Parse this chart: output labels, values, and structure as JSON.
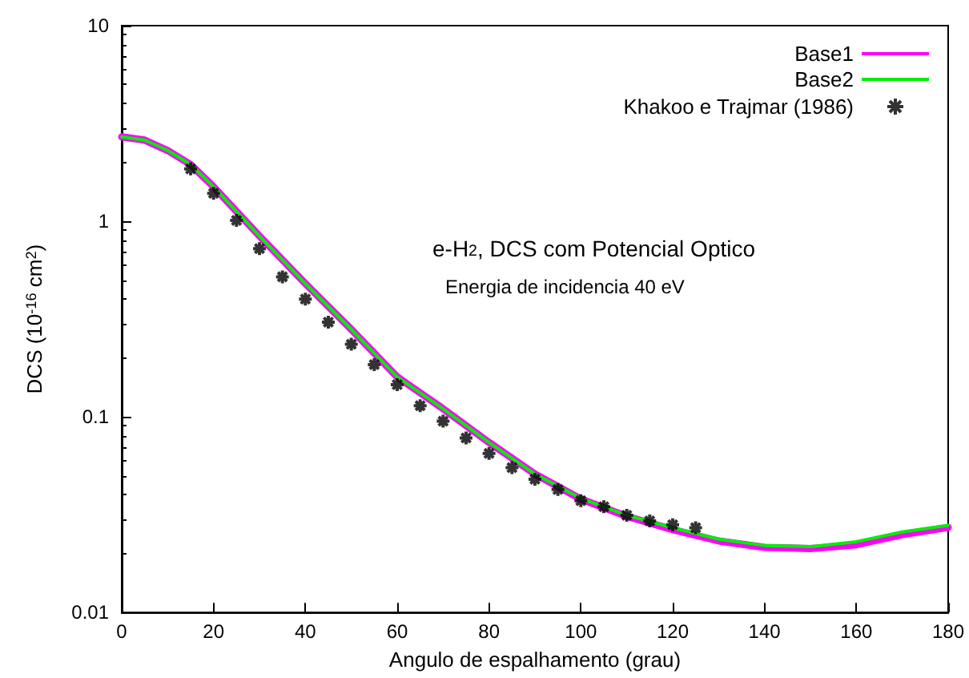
{
  "chart_data": {
    "type": "line",
    "xlabel": "Angulo de espalhamento (grau)",
    "ylabel": "DCS (10$^{-16}$ cm$^{2}$)",
    "annotations": [
      "e-H$_{2}$, DCS com Potencial Optico",
      "Energia de incidencia 40 eV"
    ],
    "log": "y",
    "xlim": [
      0,
      180
    ],
    "xticks": [
      0,
      20,
      40,
      60,
      80,
      100,
      120,
      140,
      160,
      180
    ],
    "ylim": [
      0.01,
      10
    ],
    "yticks": [
      0.01,
      0.1,
      1,
      10
    ],
    "grid": false,
    "legend": "top right",
    "line_style": "solid",
    "marker": "none",
    "series": [
      {
        "name": "Base1",
        "color": "#ff00ff",
        "x": [
          0,
          5,
          10,
          15,
          20,
          30,
          40,
          50,
          60,
          70,
          80,
          90,
          100,
          110,
          120,
          130,
          140,
          150,
          160,
          170,
          180
        ],
        "values": [
          2.7,
          2.6,
          2.3,
          1.95,
          1.5,
          0.84,
          0.48,
          0.28,
          0.16,
          0.11,
          0.074,
          0.051,
          0.038,
          0.031,
          0.0265,
          0.0232,
          0.0215,
          0.0212,
          0.0222,
          0.025,
          0.0272
        ]
      },
      {
        "name": "Base2",
        "color": "#00ee00",
        "x": [
          0,
          5,
          10,
          15,
          20,
          30,
          40,
          50,
          60,
          70,
          80,
          90,
          100,
          110,
          120,
          130,
          140,
          150,
          160,
          170,
          180
        ],
        "values": [
          2.7,
          2.6,
          2.3,
          1.95,
          1.5,
          0.84,
          0.48,
          0.28,
          0.16,
          0.11,
          0.074,
          0.051,
          0.0383,
          0.0314,
          0.0271,
          0.0237,
          0.022,
          0.0217,
          0.023,
          0.0258,
          0.0279
        ]
      },
      {
        "name": "Khakoo e Trajmar (1986)",
        "type": "scatter",
        "marker": "cross",
        "color": "#000000",
        "x": [
          15,
          20,
          25,
          30,
          35,
          40,
          45,
          50,
          55,
          60,
          65,
          70,
          75,
          80,
          85,
          90,
          95,
          100,
          105,
          110,
          115,
          120,
          125
        ],
        "values": [
          1.85,
          1.39,
          1.01,
          0.725,
          0.52,
          0.4,
          0.305,
          0.235,
          0.185,
          0.146,
          0.114,
          0.095,
          0.078,
          0.065,
          0.055,
          0.048,
          0.0425,
          0.0373,
          0.0347,
          0.0314,
          0.0294,
          0.0281,
          0.0271
        ]
      }
    ]
  }
}
